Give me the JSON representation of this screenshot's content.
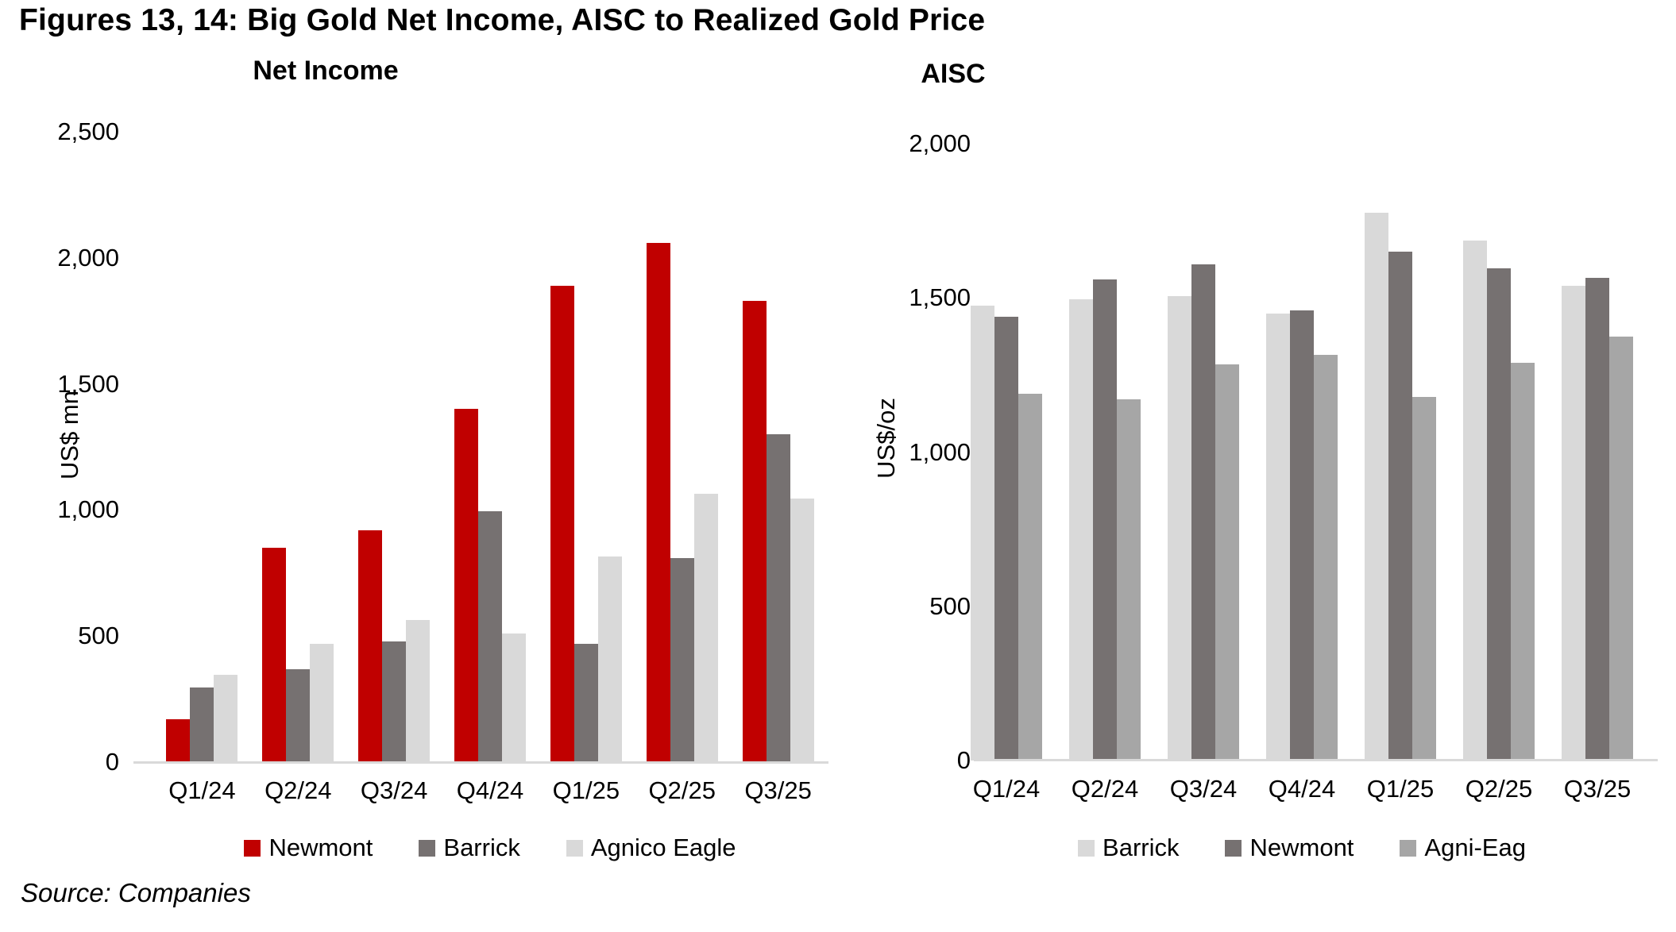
{
  "page_title": "Figures 13, 14: Big Gold Net Income, AISC to Realized Gold Price",
  "source_note": "Source: Companies",
  "chart_data": [
    {
      "type": "bar",
      "title": "Net Income",
      "ylabel": "US$ mn",
      "xlabel": "",
      "ylim": [
        0,
        2500
      ],
      "ytick_step": 500,
      "yticks": [
        "0",
        "500",
        "1,000",
        "1,500",
        "2,000",
        "2,500"
      ],
      "grid": false,
      "legend_position": "bottom",
      "categories": [
        "Q1/24",
        "Q2/24",
        "Q3/24",
        "Q4/24",
        "Q1/25",
        "Q2/25",
        "Q3/25"
      ],
      "series": [
        {
          "name": "Newmont",
          "color": "#c00000",
          "values": [
            170,
            850,
            920,
            1400,
            1890,
            2060,
            1830
          ]
        },
        {
          "name": "Barrick",
          "color": "#767171",
          "values": [
            295,
            370,
            480,
            995,
            470,
            810,
            1300
          ]
        },
        {
          "name": "Agnico Eagle",
          "color": "#d9d9d9",
          "values": [
            345,
            470,
            565,
            510,
            815,
            1065,
            1045
          ]
        }
      ]
    },
    {
      "type": "bar",
      "title": "AISC",
      "ylabel": "US$/oz",
      "xlabel": "",
      "ylim": [
        0,
        2000
      ],
      "ytick_step": 500,
      "yticks": [
        "0",
        "500",
        "1,000",
        "1,500",
        "2,000"
      ],
      "grid": false,
      "legend_position": "bottom",
      "categories": [
        "Q1/24",
        "Q2/24",
        "Q3/24",
        "Q4/24",
        "Q1/25",
        "Q2/25",
        "Q3/25"
      ],
      "series": [
        {
          "name": "Barrick",
          "color": "#d9d9d9",
          "values": [
            1475,
            1495,
            1505,
            1450,
            1775,
            1685,
            1540
          ]
        },
        {
          "name": "Newmont",
          "color": "#767171",
          "values": [
            1440,
            1560,
            1610,
            1460,
            1650,
            1595,
            1565
          ]
        },
        {
          "name": "Agni-Eag",
          "color": "#a6a6a6",
          "values": [
            1190,
            1170,
            1285,
            1315,
            1180,
            1290,
            1375
          ]
        }
      ]
    }
  ]
}
